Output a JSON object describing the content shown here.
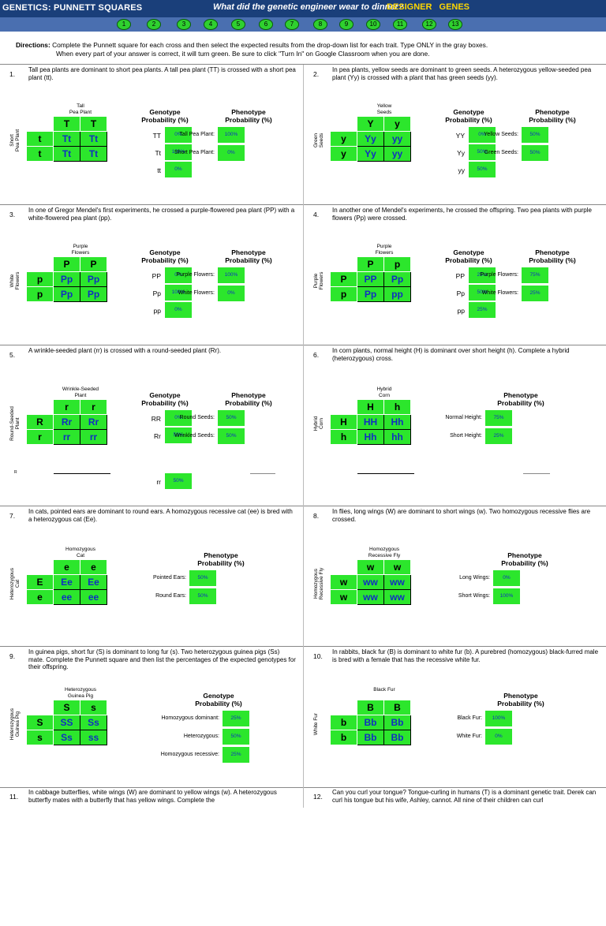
{
  "header": {
    "title": "GENETICS: PUNNETT SQUARES",
    "riddle": "What did the genetic engineer wear to dinner?",
    "answer": "DESIGNER GENES",
    "circles": [
      "1",
      "2",
      "3",
      "4",
      "5",
      "6",
      "7",
      "8",
      "9",
      "10",
      "11",
      "12",
      "13"
    ]
  },
  "directions": {
    "label": "Directions:",
    "line1": "Complete the Punnett square for each cross and then select the expected results from the drop-down list for each trait. Type ONLY in the gray boxes.",
    "line2": "When every part of your answer is correct, it will turn green. Be sure to click \"Turn In\" on Google Classroom when you are done."
  },
  "q1": {
    "num": "1.",
    "text": "Tall pea plants are dominant to short pea plants. A tall pea plant (TT) is crossed with a short pea plant (tt).",
    "top_parent": "Tall\nPea Plant",
    "side_parent": "Short\nPea Plant",
    "top": [
      "T",
      "T"
    ],
    "side": [
      "t",
      "t"
    ],
    "cells": [
      [
        "Tt",
        "Tt"
      ],
      [
        "Tt",
        "Tt"
      ]
    ],
    "geno_header": "Genotype\nProbability (%)",
    "pheno_header": "Phenotype\nProbability (%)",
    "geno": [
      {
        "l": "TT",
        "v": "0%"
      },
      {
        "l": "Tt",
        "v": "100%"
      },
      {
        "l": "tt",
        "v": "0%"
      }
    ],
    "pheno": [
      {
        "l": "Tall Pea Plant:",
        "v": "100%"
      },
      {
        "l": "Short Pea Plant:",
        "v": "0%"
      }
    ]
  },
  "q2": {
    "num": "2.",
    "text": "In pea plants, yellow seeds are dominant to green seeds. A heterozygous yellow-seeded pea plant (Yy) is crossed with a plant that has green seeds (yy).",
    "top_parent": "Yellow\nSeeds",
    "side_parent": "Green\nSeeds",
    "top": [
      "Y",
      "y"
    ],
    "side": [
      "y",
      "y"
    ],
    "cells": [
      [
        "Yy",
        "yy"
      ],
      [
        "Yy",
        "yy"
      ]
    ],
    "geno_header": "Genotype\nProbability (%)",
    "pheno_header": "Phenotype\nProbability (%)",
    "geno": [
      {
        "l": "YY",
        "v": "0%"
      },
      {
        "l": "Yy",
        "v": "50%"
      },
      {
        "l": "yy",
        "v": "50%"
      }
    ],
    "pheno": [
      {
        "l": "Yellow Seeds:",
        "v": "50%"
      },
      {
        "l": "Green Seeds:",
        "v": "50%"
      }
    ]
  },
  "q3": {
    "num": "3.",
    "text": "In one of Gregor Mendel's first experiments, he crossed a purple-flowered pea plant (PP) with a white-flowered pea plant (pp).",
    "top_parent": "Purple\nFlowers",
    "side_parent": "White\nFlowers",
    "top": [
      "P",
      "P"
    ],
    "side": [
      "p",
      "p"
    ],
    "cells": [
      [
        "Pp",
        "Pp"
      ],
      [
        "Pp",
        "Pp"
      ]
    ],
    "geno_header": "Genotype\nProbability (%)",
    "pheno_header": "Phenotype\nProbability (%)",
    "geno": [
      {
        "l": "PP",
        "v": "0%"
      },
      {
        "l": "Pp",
        "v": "100%"
      },
      {
        "l": "pp",
        "v": "0%"
      }
    ],
    "pheno": [
      {
        "l": "Purple Flowers:",
        "v": "100%"
      },
      {
        "l": "White Flowers:",
        "v": "0%"
      }
    ]
  },
  "q4": {
    "num": "4.",
    "text": "In another one of Mendel's experiments, he crossed the offspring. Two pea plants with purple flowers (Pp) were crossed.",
    "top_parent": "Purple\nFlowers",
    "side_parent": "Purple\nFlowers",
    "top": [
      "P",
      "p"
    ],
    "side": [
      "P",
      "p"
    ],
    "cells": [
      [
        "PP",
        "Pp"
      ],
      [
        "Pp",
        "pp"
      ]
    ],
    "geno_header": "Genotype\nProbability (%)",
    "pheno_header": "Phenotype\nProbability (%)",
    "geno": [
      {
        "l": "PP",
        "v": "25%"
      },
      {
        "l": "Pp",
        "v": "50%"
      },
      {
        "l": "pp",
        "v": "25%"
      }
    ],
    "pheno": [
      {
        "l": "Purple Flowers:",
        "v": "75%"
      },
      {
        "l": "White Flowers:",
        "v": "25%"
      }
    ]
  },
  "q5": {
    "num": "5.",
    "text": "A wrinkle-seeded plant (rr) is crossed with a round-seeded plant (Rr).",
    "top_parent": "Wrinkle-Seeded\nPlant",
    "side_parent": "Round-Seeded\nPlant",
    "top": [
      "r",
      "r"
    ],
    "side": [
      "R",
      "r"
    ],
    "cells": [
      [
        "Rr",
        "Rr"
      ],
      [
        "rr",
        "rr"
      ]
    ],
    "geno_header": "Genotype\nProbability (%)",
    "pheno_header": "Phenotype\nProbability (%)",
    "geno": [
      {
        "l": "RR",
        "v": "0%"
      },
      {
        "l": "Rr",
        "v": "50%"
      },
      {
        "l": "rr",
        "v": "50%"
      }
    ],
    "pheno": [
      {
        "l": "Round Seeds:",
        "v": "50%"
      },
      {
        "l": "Wrinkled Seeds:",
        "v": "50%"
      }
    ]
  },
  "q6": {
    "num": "6.",
    "text": "In corn plants, normal height (H) is dominant over short height (h). Complete a hybrid (heterozygous) cross.",
    "top_parent": "Hybrid\nCorn",
    "side_parent": "Hybrid\nCorn",
    "top": [
      "H",
      "h"
    ],
    "side": [
      "H",
      "h"
    ],
    "cells": [
      [
        "HH",
        "Hh"
      ],
      [
        "Hh",
        "hh"
      ]
    ],
    "pheno_header": "Phenotype\nProbability (%)",
    "pheno": [
      {
        "l": "Normal Height:",
        "v": "75%"
      },
      {
        "l": "Short Height:",
        "v": "25%"
      }
    ]
  },
  "q7": {
    "num": "7.",
    "text": "In cats, pointed ears are dominant to round ears. A homozygous recessive cat (ee) is bred with a heterozygous cat (Ee).",
    "top_parent": "Homozygous\nCat",
    "side_parent": "Heterozygous\nCat",
    "top": [
      "e",
      "e"
    ],
    "side": [
      "E",
      "e"
    ],
    "cells": [
      [
        "Ee",
        "Ee"
      ],
      [
        "ee",
        "ee"
      ]
    ],
    "pheno_header": "Phenotype\nProbability (%)",
    "pheno": [
      {
        "l": "Pointed Ears:",
        "v": "50%"
      },
      {
        "l": "Round Ears:",
        "v": "50%"
      }
    ]
  },
  "q8": {
    "num": "8.",
    "text": "In flies, long wings (W) are dominant to short wings (w). Two homozygous recessive flies are crossed.",
    "top_parent": "Homozygous\nRecessive Fly",
    "side_parent": "Homozygous\nRecessive Fly",
    "top": [
      "w",
      "w"
    ],
    "side": [
      "w",
      "w"
    ],
    "cells": [
      [
        "ww",
        "ww"
      ],
      [
        "ww",
        "ww"
      ]
    ],
    "pheno_header": "Phenotype\nProbability (%)",
    "pheno": [
      {
        "l": "Long Wings:",
        "v": "0%"
      },
      {
        "l": "Short Wings:",
        "v": "100%"
      }
    ]
  },
  "q9": {
    "num": "9.",
    "text": "In guinea pigs, short fur (S) is dominant to long fur (s). Two heterozygous guinea pigs (Ss) mate. Complete the Punnett square and then list the percentages of the expected genotypes for their offspring.",
    "top_parent": "Heterozygous\nGuinea Pig",
    "side_parent": "Heterozygous\nGuinea Pig",
    "top": [
      "S",
      "s"
    ],
    "side": [
      "S",
      "s"
    ],
    "cells": [
      [
        "SS",
        "Ss"
      ],
      [
        "Ss",
        "ss"
      ]
    ],
    "geno_header": "Genotype\nProbability (%)",
    "geno": [
      {
        "l": "Homozygous dominant:",
        "v": "25%"
      },
      {
        "l": "Heterozygous:",
        "v": "50%"
      },
      {
        "l": "Homozygous recessive:",
        "v": "25%"
      }
    ]
  },
  "q10": {
    "num": "10.",
    "text": "In rabbits, black fur (B) is dominant to white fur (b). A purebred (homozygous) black-furred male is bred with a female that has the recessive white fur.",
    "top_parent": "Black Fur",
    "side_parent": "White Fur",
    "top": [
      "B",
      "B"
    ],
    "side": [
      "b",
      "b"
    ],
    "cells": [
      [
        "Bb",
        "Bb"
      ],
      [
        "Bb",
        "Bb"
      ]
    ],
    "pheno_header": "Phenotype\nProbability (%)",
    "pheno": [
      {
        "l": "Black Fur:",
        "v": "100%"
      },
      {
        "l": "White Fur:",
        "v": "0%"
      }
    ]
  },
  "q11": {
    "num": "11.",
    "text": "In cabbage butterflies, white wings (W) are dominant to yellow wings (w). A heterozygous butterfly mates with a butterfly that has yellow wings. Complete the"
  },
  "q12": {
    "num": "12.",
    "text": "Can you curl your tongue? Tongue-curling in humans (T) is a dominant genetic trait. Derek can curl his tongue but his wife, Ashley, cannot. All nine of their children can curl"
  },
  "q5_footer": "R"
}
